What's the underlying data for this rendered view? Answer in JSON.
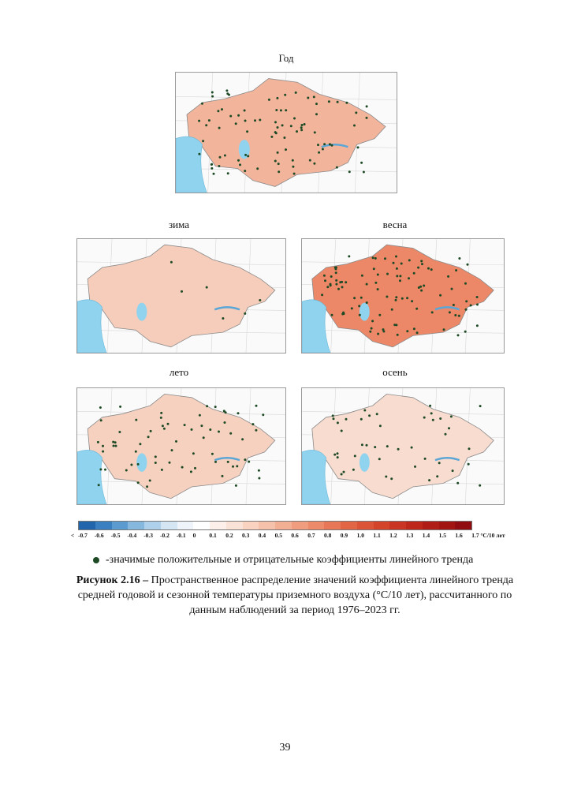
{
  "maps": [
    {
      "title": "Год"
    },
    {
      "title": "зима"
    },
    {
      "title": "весна"
    },
    {
      "title": "лето"
    },
    {
      "title": "осень"
    }
  ],
  "scale": {
    "ticks": [
      "<",
      "-0.7",
      "-0.6",
      "-0.5",
      "-0.4",
      "-0.3",
      "-0.2",
      "-0.1",
      "0",
      "0.1",
      "0.2",
      "0.3",
      "0.4",
      "0.5",
      "0.6",
      "0.7",
      "0.8",
      "0.9",
      "1.0",
      "1.1",
      "1.2",
      "1.3",
      "1.4",
      "1.5",
      "1.6",
      "1.7 °C/10 лет"
    ],
    "colors": [
      "#2166ac",
      "#3a7fbf",
      "#5b9bd0",
      "#86b8de",
      "#afd0ea",
      "#d4e5f3",
      "#eef4fa",
      "#ffffff",
      "#fdf0ea",
      "#fbe2d6",
      "#f9d2c0",
      "#f6c1aa",
      "#f3af94",
      "#f09d7f",
      "#ec8a6a",
      "#e77757",
      "#e26546",
      "#db5437",
      "#d3442b",
      "#c93522",
      "#bd281b",
      "#b01d16",
      "#a11412",
      "#900c10"
    ]
  },
  "legend": {
    "text": "-значимые положительные и отрицательные коэффициенты линейного тренда"
  },
  "caption": {
    "label": "Рисунок 2.16 –",
    "text": " Пространственное распределение значений коэффициента линейного тренда средней годовой и сезонной температуры приземного воздуха (°С/10 лет), рассчитанного по данным наблюдений за период 1976–2023 гг."
  },
  "page_number": "39"
}
